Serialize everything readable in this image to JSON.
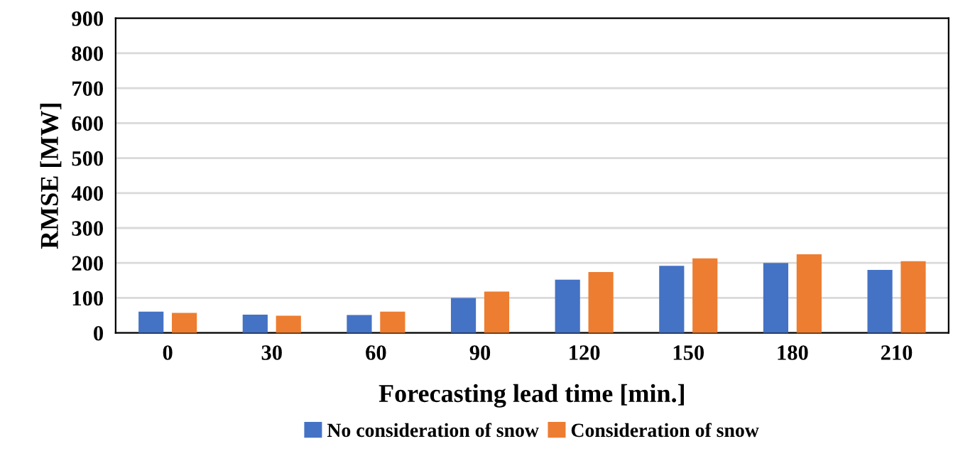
{
  "chart_data": {
    "type": "bar",
    "xlabel": "Forecasting lead time [min.]",
    "ylabel": "RMSE [MW]",
    "categories": [
      "0",
      "30",
      "60",
      "90",
      "120",
      "150",
      "180",
      "210"
    ],
    "series": [
      {
        "name": "No consideration of snow",
        "color": "#4472c4",
        "values": [
          61,
          52,
          51,
          100,
          152,
          192,
          200,
          180
        ]
      },
      {
        "name": "Consideration of snow",
        "color": "#ed7d31",
        "values": [
          57,
          49,
          61,
          118,
          174,
          213,
          225,
          205
        ]
      }
    ],
    "ylim": [
      0,
      900
    ],
    "yticks": [
      0,
      100,
      200,
      300,
      400,
      500,
      600,
      700,
      800,
      900
    ],
    "grid": "y",
    "legend": "bottom"
  }
}
